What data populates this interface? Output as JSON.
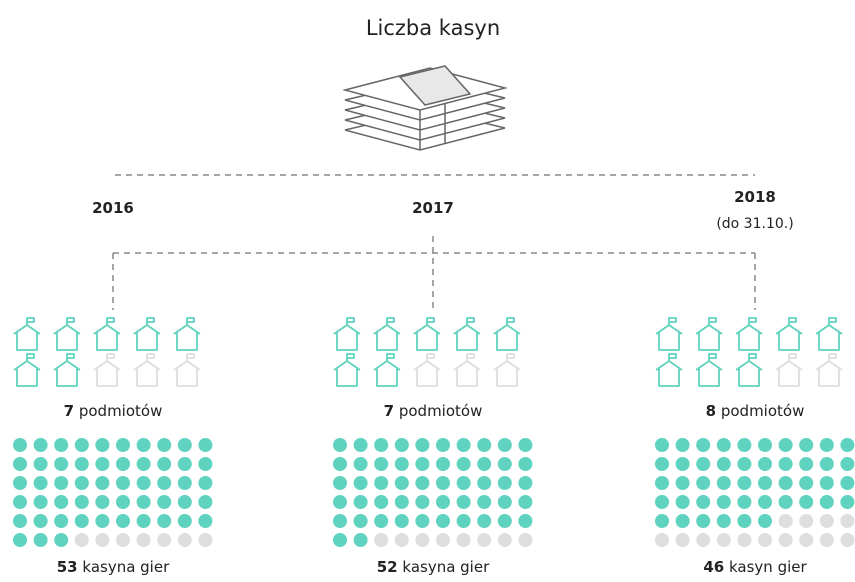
{
  "title": "Liczba kasyn",
  "columns": [
    {
      "year": "2016",
      "entities": 7,
      "entities_label": "podmiotów",
      "casinos": 53,
      "casinos_label": "kasyna gier"
    },
    {
      "year": "2017",
      "entities": 7,
      "entities_label": "podmiotów",
      "casinos": 52,
      "casinos_label": "kasyna gier"
    },
    {
      "year": "2018",
      "note": "(do 31.10.)",
      "entities": 8,
      "entities_label": "podmiotów",
      "casinos": 46,
      "casinos_label": "kasyn gier"
    }
  ]
}
